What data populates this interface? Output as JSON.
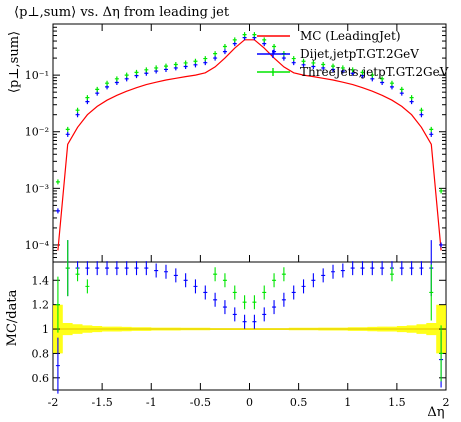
{
  "chart_data": [
    {
      "type": "scatter",
      "panel": "main",
      "title": "⟨p⊥,sum⟩ vs. Δη from leading jet",
      "ylabel": "⟨p⊥,sum⟩",
      "xlabel": "",
      "xlim": [
        -2,
        2
      ],
      "ylim": [
        5e-05,
        0.8
      ],
      "yscale": "log",
      "y_tick_labels": [
        "10⁻⁴",
        "10⁻³",
        "10⁻²",
        "10⁻¹"
      ],
      "y_ticks": [
        0.0001,
        0.001,
        0.01,
        0.1
      ],
      "legend_position": "top-right",
      "grid": false,
      "x": [
        -1.95,
        -1.85,
        -1.75,
        -1.65,
        -1.55,
        -1.45,
        -1.35,
        -1.25,
        -1.15,
        -1.05,
        -0.95,
        -0.85,
        -0.75,
        -0.65,
        -0.55,
        -0.45,
        -0.35,
        -0.25,
        -0.15,
        -0.05,
        0.05,
        0.15,
        0.25,
        0.35,
        0.45,
        0.55,
        0.65,
        0.75,
        0.85,
        0.95,
        1.05,
        1.15,
        1.25,
        1.35,
        1.45,
        1.55,
        1.65,
        1.75,
        1.85,
        1.95
      ],
      "series": [
        {
          "name": "MC (LeadingJet)",
          "color": "#ff0000",
          "style": "line",
          "values": [
            8e-05,
            0.006,
            0.012,
            0.02,
            0.028,
            0.036,
            0.044,
            0.052,
            0.06,
            0.068,
            0.075,
            0.082,
            0.088,
            0.094,
            0.1,
            0.11,
            0.14,
            0.2,
            0.3,
            0.42,
            0.42,
            0.3,
            0.2,
            0.14,
            0.11,
            0.1,
            0.094,
            0.088,
            0.082,
            0.075,
            0.068,
            0.06,
            0.052,
            0.044,
            0.036,
            0.028,
            0.02,
            0.012,
            0.006,
            8e-05
          ]
        },
        {
          "name": "Dijet,jetpT.GT.2GeV",
          "color": "#0000ff",
          "style": "points",
          "values": [
            0.0004,
            0.009,
            0.02,
            0.034,
            0.048,
            0.062,
            0.074,
            0.086,
            0.098,
            0.108,
            0.118,
            0.126,
            0.134,
            0.142,
            0.152,
            0.166,
            0.2,
            0.26,
            0.36,
            0.46,
            0.46,
            0.36,
            0.26,
            0.2,
            0.166,
            0.152,
            0.142,
            0.134,
            0.126,
            0.118,
            0.108,
            0.098,
            0.086,
            0.074,
            0.062,
            0.048,
            0.034,
            0.02,
            0.009,
            0.0001
          ]
        },
        {
          "name": "ThreeJets,jetpT.GT.2GeV",
          "color": "#00e600",
          "style": "points",
          "values": [
            0.0013,
            0.011,
            0.024,
            0.04,
            0.056,
            0.072,
            0.086,
            0.1,
            0.112,
            0.124,
            0.134,
            0.144,
            0.154,
            0.164,
            0.176,
            0.196,
            0.24,
            0.32,
            0.42,
            0.52,
            0.52,
            0.42,
            0.32,
            0.24,
            0.196,
            0.176,
            0.164,
            0.154,
            0.144,
            0.134,
            0.124,
            0.112,
            0.1,
            0.086,
            0.072,
            0.056,
            0.04,
            0.024,
            0.011,
            0.0009
          ]
        }
      ]
    },
    {
      "type": "scatter",
      "panel": "ratio",
      "ylabel": "MC/data",
      "xlabel": "Δη",
      "xlim": [
        -2,
        2
      ],
      "ylim": [
        0.5,
        1.55
      ],
      "y_ticks": [
        0.6,
        0.8,
        1,
        1.2,
        1.4
      ],
      "y_tick_labels": [
        "0.6",
        "0.8",
        "1",
        "1.2",
        "1.4"
      ],
      "x_ticks": [
        -2,
        -1.5,
        -1,
        -0.5,
        0,
        0.5,
        1,
        1.5,
        2
      ],
      "x_tick_labels": [
        "-2",
        "-1.5",
        "-1",
        "-0.5",
        "0",
        "0.5",
        "1",
        "1.5",
        "2"
      ],
      "x": [
        -1.95,
        -1.85,
        -1.75,
        -1.65,
        -1.55,
        -1.45,
        -1.35,
        -1.25,
        -1.15,
        -1.05,
        -0.95,
        -0.85,
        -0.75,
        -0.65,
        -0.55,
        -0.45,
        -0.35,
        -0.25,
        -0.15,
        -0.05,
        0.05,
        0.15,
        0.25,
        0.35,
        0.45,
        0.55,
        0.65,
        0.75,
        0.85,
        0.95,
        1.05,
        1.15,
        1.25,
        1.35,
        1.45,
        1.55,
        1.65,
        1.75,
        1.85,
        1.95
      ],
      "band": {
        "color": "#ffff00",
        "halfwidth": [
          0.2,
          0.05,
          0.04,
          0.03,
          0.025,
          0.02,
          0.02,
          0.018,
          0.015,
          0.015,
          0.012,
          0.012,
          0.012,
          0.01,
          0.01,
          0.01,
          0.008,
          0.008,
          0.008,
          0.008,
          0.008,
          0.008,
          0.008,
          0.008,
          0.01,
          0.01,
          0.01,
          0.012,
          0.012,
          0.012,
          0.015,
          0.015,
          0.018,
          0.02,
          0.02,
          0.025,
          0.03,
          0.04,
          0.05,
          0.2
        ]
      },
      "series": [
        {
          "name": "Dijet,jetpT.GT.2GeV",
          "color": "#0000ff",
          "values": [
            0.7,
            1.5,
            1.5,
            1.5,
            1.5,
            1.5,
            1.5,
            1.5,
            1.5,
            1.5,
            1.48,
            1.47,
            1.44,
            1.4,
            1.35,
            1.3,
            1.24,
            1.18,
            1.12,
            1.06,
            1.06,
            1.12,
            1.18,
            1.24,
            1.3,
            1.35,
            1.4,
            1.44,
            1.47,
            1.48,
            1.5,
            1.5,
            1.5,
            1.5,
            1.5,
            1.5,
            1.5,
            1.5,
            1.5,
            0.75
          ]
        },
        {
          "name": "ThreeJets,jetpT.GT.2GeV",
          "color": "#00e600",
          "values": [
            1.2,
            1.5,
            1.45,
            1.35,
            null,
            null,
            null,
            null,
            null,
            null,
            null,
            null,
            null,
            null,
            null,
            null,
            1.45,
            1.4,
            1.3,
            1.22,
            1.22,
            1.3,
            1.4,
            1.45,
            null,
            null,
            null,
            null,
            null,
            null,
            null,
            null,
            null,
            null,
            1.45,
            null,
            null,
            null,
            1.3,
            0.8
          ]
        }
      ]
    }
  ]
}
